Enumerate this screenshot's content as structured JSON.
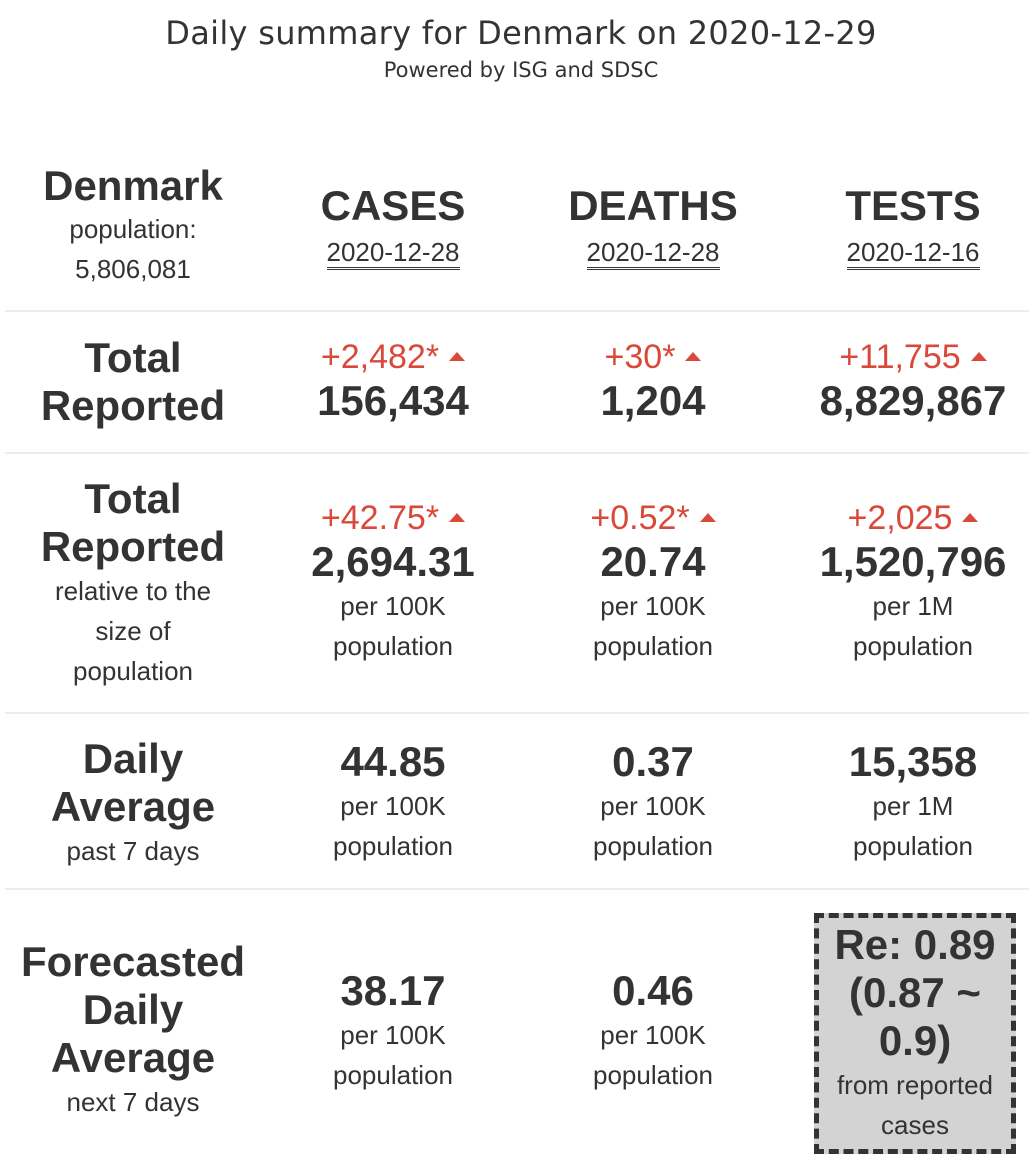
{
  "header": {
    "title": "Daily summary for Denmark on 2020-12-29",
    "subtitle": "Powered by ISG and SDSC"
  },
  "country": {
    "name": "Denmark",
    "population_label": "population:",
    "population_value": "5,806,081"
  },
  "columns": [
    {
      "name": "CASES",
      "date": "2020-12-28"
    },
    {
      "name": "DEATHS",
      "date": "2020-12-28"
    },
    {
      "name": "TESTS",
      "date": "2020-12-16"
    }
  ],
  "rows": {
    "total": {
      "label_line1": "Total",
      "label_line2": "Reported",
      "cells": [
        {
          "delta": "+2,482*",
          "value": "156,434"
        },
        {
          "delta": "+30*",
          "value": "1,204"
        },
        {
          "delta": "+11,755",
          "value": "8,829,867"
        }
      ]
    },
    "relative": {
      "label_line1": "Total",
      "label_line2": "Reported",
      "sub1": "relative to the",
      "sub2": "size of",
      "sub3": "population",
      "cells": [
        {
          "delta": "+42.75*",
          "value": "2,694.31",
          "unit1": "per 100K",
          "unit2": "population"
        },
        {
          "delta": "+0.52*",
          "value": "20.74",
          "unit1": "per 100K",
          "unit2": "population"
        },
        {
          "delta": "+2,025",
          "value": "1,520,796",
          "unit1": "per 1M",
          "unit2": "population"
        }
      ]
    },
    "daily": {
      "label_line1": "Daily",
      "label_line2": "Average",
      "sub1": "past 7 days",
      "cells": [
        {
          "value": "44.85",
          "unit1": "per 100K",
          "unit2": "population"
        },
        {
          "value": "0.37",
          "unit1": "per 100K",
          "unit2": "population"
        },
        {
          "value": "15,358",
          "unit1": "per 1M",
          "unit2": "population"
        }
      ]
    },
    "forecast": {
      "label_line1": "Forecasted",
      "label_line2": "Daily",
      "label_line3": "Average",
      "sub1": "next 7 days",
      "cells": [
        {
          "value": "38.17",
          "unit1": "per 100K",
          "unit2": "population"
        },
        {
          "value": "0.46",
          "unit1": "per 100K",
          "unit2": "population"
        }
      ],
      "re": {
        "line1": "Re: 0.89",
        "line2": "(0.87 ~",
        "line3": "0.9)",
        "sub1": "from reported",
        "sub2": "cases"
      }
    }
  },
  "colors": {
    "increase": "#d9493a",
    "text": "#333333",
    "re_box_bg": "#d3d3d3"
  },
  "icons": {
    "increase_indicator": "triangle-up-icon"
  }
}
